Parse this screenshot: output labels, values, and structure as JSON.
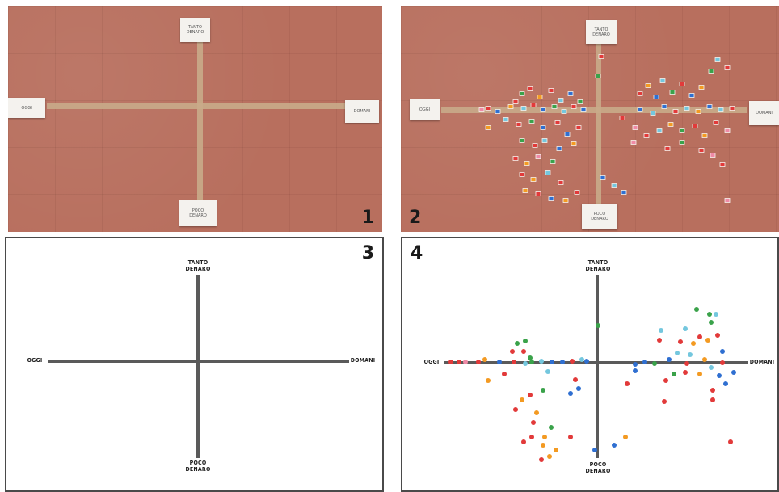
{
  "panels": [
    {
      "number": "1"
    },
    {
      "number": "2"
    },
    {
      "number": "3"
    },
    {
      "number": "4"
    }
  ],
  "axis_labels": {
    "left": "OGGI",
    "right": "DOMANI",
    "top": "TANTO\nDENARO",
    "bottom": "POCO\nDENARO"
  },
  "colors": {
    "floor": "#b86f5e",
    "tape": "#c9ab8a",
    "axis_line": "#5a5a5a",
    "dot_red": "#e23a3a",
    "dot_blue": "#2f6fd1",
    "dot_green": "#3aa24a",
    "dot_orange": "#f39a22",
    "dot_lightblue": "#74c7de",
    "dot_pink": "#ef8aa6"
  }
}
